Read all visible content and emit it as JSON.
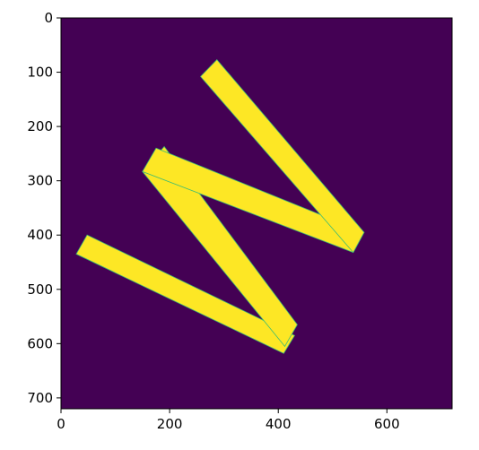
{
  "chart_data": {
    "type": "heatmap",
    "title": "",
    "xlabel": "",
    "ylabel": "",
    "xlim": [
      0,
      720
    ],
    "ylim": [
      720,
      0
    ],
    "image_size": [
      720,
      720
    ],
    "x_ticks": [
      0,
      200,
      400,
      600
    ],
    "y_ticks": [
      0,
      100,
      200,
      300,
      400,
      500,
      600,
      700
    ],
    "x_tick_labels": [
      "0",
      "200",
      "400",
      "600"
    ],
    "y_tick_labels": [
      "0",
      "100",
      "200",
      "300",
      "400",
      "500",
      "600",
      "700"
    ],
    "grid": false,
    "colormap": "viridis",
    "background_color": "#440154",
    "shape_color": "#fde725",
    "shape": "W",
    "shape_polygons": [
      [
        [
          28,
          435
        ],
        [
          48,
          400
        ],
        [
          430,
          585
        ],
        [
          410,
          618
        ]
      ],
      [
        [
          412,
          605
        ],
        [
          435,
          565
        ],
        [
          190,
          237
        ],
        [
          150,
          283
        ]
      ],
      [
        [
          150,
          283
        ],
        [
          175,
          240
        ],
        [
          558,
          395
        ],
        [
          538,
          432
        ]
      ],
      [
        [
          538,
          432
        ],
        [
          558,
          395
        ],
        [
          287,
          77
        ],
        [
          257,
          108
        ]
      ]
    ]
  }
}
